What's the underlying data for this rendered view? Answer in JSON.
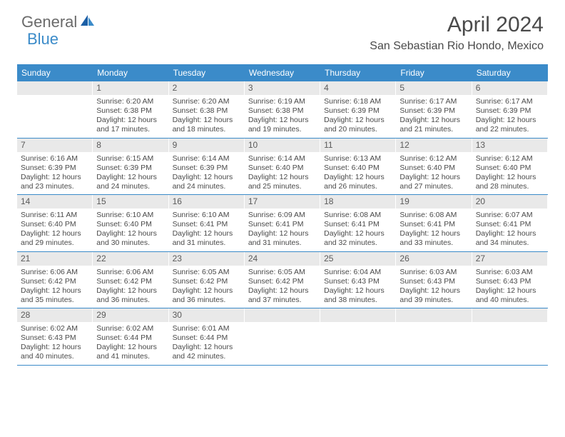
{
  "logo": {
    "text1": "General",
    "text2": "Blue"
  },
  "title": "April 2024",
  "location": "San Sebastian Rio Hondo, Mexico",
  "colors": {
    "accent": "#3b8bc9",
    "numbar_bg": "#e9e9e9",
    "text": "#4a4a4a",
    "background": "#ffffff"
  },
  "dayHeaders": [
    "Sunday",
    "Monday",
    "Tuesday",
    "Wednesday",
    "Thursday",
    "Friday",
    "Saturday"
  ],
  "weeks": [
    [
      {
        "num": "",
        "sunrise": "",
        "sunset": "",
        "daylight1": "",
        "daylight2": "",
        "empty": true
      },
      {
        "num": "1",
        "sunrise": "Sunrise: 6:20 AM",
        "sunset": "Sunset: 6:38 PM",
        "daylight1": "Daylight: 12 hours",
        "daylight2": "and 17 minutes."
      },
      {
        "num": "2",
        "sunrise": "Sunrise: 6:20 AM",
        "sunset": "Sunset: 6:38 PM",
        "daylight1": "Daylight: 12 hours",
        "daylight2": "and 18 minutes."
      },
      {
        "num": "3",
        "sunrise": "Sunrise: 6:19 AM",
        "sunset": "Sunset: 6:38 PM",
        "daylight1": "Daylight: 12 hours",
        "daylight2": "and 19 minutes."
      },
      {
        "num": "4",
        "sunrise": "Sunrise: 6:18 AM",
        "sunset": "Sunset: 6:39 PM",
        "daylight1": "Daylight: 12 hours",
        "daylight2": "and 20 minutes."
      },
      {
        "num": "5",
        "sunrise": "Sunrise: 6:17 AM",
        "sunset": "Sunset: 6:39 PM",
        "daylight1": "Daylight: 12 hours",
        "daylight2": "and 21 minutes."
      },
      {
        "num": "6",
        "sunrise": "Sunrise: 6:17 AM",
        "sunset": "Sunset: 6:39 PM",
        "daylight1": "Daylight: 12 hours",
        "daylight2": "and 22 minutes."
      }
    ],
    [
      {
        "num": "7",
        "sunrise": "Sunrise: 6:16 AM",
        "sunset": "Sunset: 6:39 PM",
        "daylight1": "Daylight: 12 hours",
        "daylight2": "and 23 minutes."
      },
      {
        "num": "8",
        "sunrise": "Sunrise: 6:15 AM",
        "sunset": "Sunset: 6:39 PM",
        "daylight1": "Daylight: 12 hours",
        "daylight2": "and 24 minutes."
      },
      {
        "num": "9",
        "sunrise": "Sunrise: 6:14 AM",
        "sunset": "Sunset: 6:39 PM",
        "daylight1": "Daylight: 12 hours",
        "daylight2": "and 24 minutes."
      },
      {
        "num": "10",
        "sunrise": "Sunrise: 6:14 AM",
        "sunset": "Sunset: 6:40 PM",
        "daylight1": "Daylight: 12 hours",
        "daylight2": "and 25 minutes."
      },
      {
        "num": "11",
        "sunrise": "Sunrise: 6:13 AM",
        "sunset": "Sunset: 6:40 PM",
        "daylight1": "Daylight: 12 hours",
        "daylight2": "and 26 minutes."
      },
      {
        "num": "12",
        "sunrise": "Sunrise: 6:12 AM",
        "sunset": "Sunset: 6:40 PM",
        "daylight1": "Daylight: 12 hours",
        "daylight2": "and 27 minutes."
      },
      {
        "num": "13",
        "sunrise": "Sunrise: 6:12 AM",
        "sunset": "Sunset: 6:40 PM",
        "daylight1": "Daylight: 12 hours",
        "daylight2": "and 28 minutes."
      }
    ],
    [
      {
        "num": "14",
        "sunrise": "Sunrise: 6:11 AM",
        "sunset": "Sunset: 6:40 PM",
        "daylight1": "Daylight: 12 hours",
        "daylight2": "and 29 minutes."
      },
      {
        "num": "15",
        "sunrise": "Sunrise: 6:10 AM",
        "sunset": "Sunset: 6:40 PM",
        "daylight1": "Daylight: 12 hours",
        "daylight2": "and 30 minutes."
      },
      {
        "num": "16",
        "sunrise": "Sunrise: 6:10 AM",
        "sunset": "Sunset: 6:41 PM",
        "daylight1": "Daylight: 12 hours",
        "daylight2": "and 31 minutes."
      },
      {
        "num": "17",
        "sunrise": "Sunrise: 6:09 AM",
        "sunset": "Sunset: 6:41 PM",
        "daylight1": "Daylight: 12 hours",
        "daylight2": "and 31 minutes."
      },
      {
        "num": "18",
        "sunrise": "Sunrise: 6:08 AM",
        "sunset": "Sunset: 6:41 PM",
        "daylight1": "Daylight: 12 hours",
        "daylight2": "and 32 minutes."
      },
      {
        "num": "19",
        "sunrise": "Sunrise: 6:08 AM",
        "sunset": "Sunset: 6:41 PM",
        "daylight1": "Daylight: 12 hours",
        "daylight2": "and 33 minutes."
      },
      {
        "num": "20",
        "sunrise": "Sunrise: 6:07 AM",
        "sunset": "Sunset: 6:41 PM",
        "daylight1": "Daylight: 12 hours",
        "daylight2": "and 34 minutes."
      }
    ],
    [
      {
        "num": "21",
        "sunrise": "Sunrise: 6:06 AM",
        "sunset": "Sunset: 6:42 PM",
        "daylight1": "Daylight: 12 hours",
        "daylight2": "and 35 minutes."
      },
      {
        "num": "22",
        "sunrise": "Sunrise: 6:06 AM",
        "sunset": "Sunset: 6:42 PM",
        "daylight1": "Daylight: 12 hours",
        "daylight2": "and 36 minutes."
      },
      {
        "num": "23",
        "sunrise": "Sunrise: 6:05 AM",
        "sunset": "Sunset: 6:42 PM",
        "daylight1": "Daylight: 12 hours",
        "daylight2": "and 36 minutes."
      },
      {
        "num": "24",
        "sunrise": "Sunrise: 6:05 AM",
        "sunset": "Sunset: 6:42 PM",
        "daylight1": "Daylight: 12 hours",
        "daylight2": "and 37 minutes."
      },
      {
        "num": "25",
        "sunrise": "Sunrise: 6:04 AM",
        "sunset": "Sunset: 6:43 PM",
        "daylight1": "Daylight: 12 hours",
        "daylight2": "and 38 minutes."
      },
      {
        "num": "26",
        "sunrise": "Sunrise: 6:03 AM",
        "sunset": "Sunset: 6:43 PM",
        "daylight1": "Daylight: 12 hours",
        "daylight2": "and 39 minutes."
      },
      {
        "num": "27",
        "sunrise": "Sunrise: 6:03 AM",
        "sunset": "Sunset: 6:43 PM",
        "daylight1": "Daylight: 12 hours",
        "daylight2": "and 40 minutes."
      }
    ],
    [
      {
        "num": "28",
        "sunrise": "Sunrise: 6:02 AM",
        "sunset": "Sunset: 6:43 PM",
        "daylight1": "Daylight: 12 hours",
        "daylight2": "and 40 minutes."
      },
      {
        "num": "29",
        "sunrise": "Sunrise: 6:02 AM",
        "sunset": "Sunset: 6:44 PM",
        "daylight1": "Daylight: 12 hours",
        "daylight2": "and 41 minutes."
      },
      {
        "num": "30",
        "sunrise": "Sunrise: 6:01 AM",
        "sunset": "Sunset: 6:44 PM",
        "daylight1": "Daylight: 12 hours",
        "daylight2": "and 42 minutes."
      },
      {
        "num": "",
        "sunrise": "",
        "sunset": "",
        "daylight1": "",
        "daylight2": "",
        "empty": true
      },
      {
        "num": "",
        "sunrise": "",
        "sunset": "",
        "daylight1": "",
        "daylight2": "",
        "empty": true
      },
      {
        "num": "",
        "sunrise": "",
        "sunset": "",
        "daylight1": "",
        "daylight2": "",
        "empty": true
      },
      {
        "num": "",
        "sunrise": "",
        "sunset": "",
        "daylight1": "",
        "daylight2": "",
        "empty": true
      }
    ]
  ]
}
